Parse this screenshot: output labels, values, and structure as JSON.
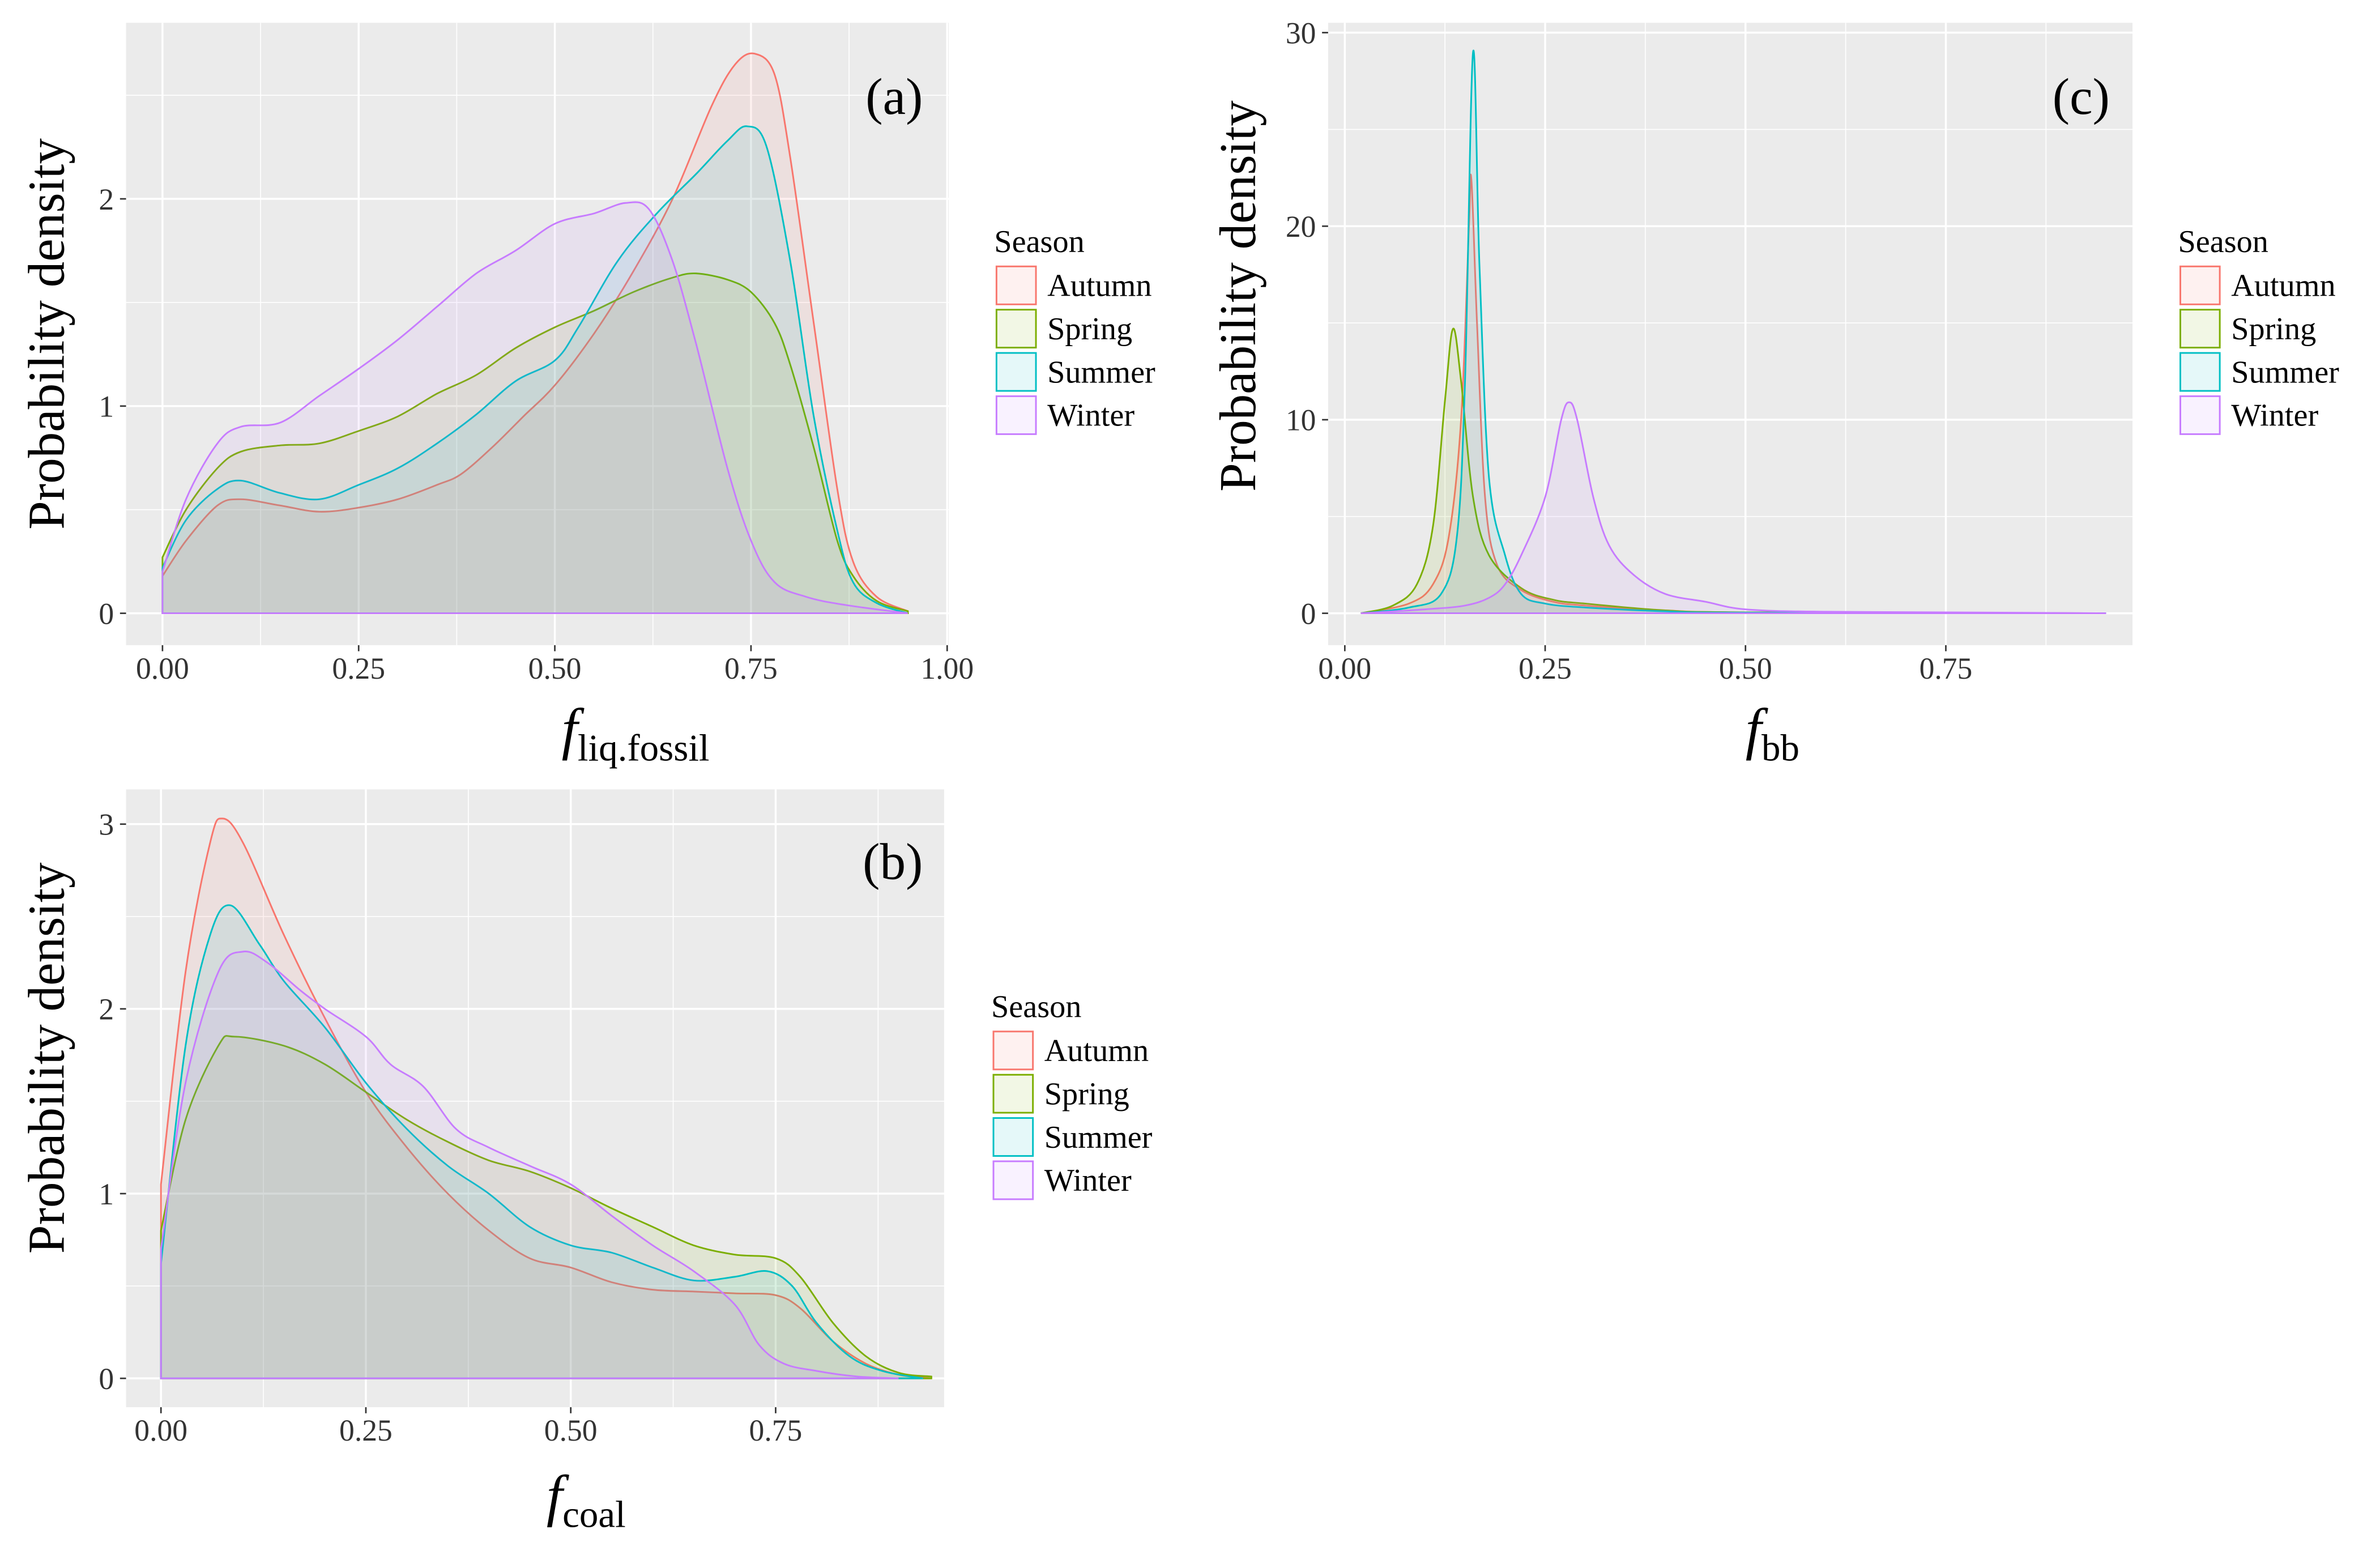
{
  "legend": {
    "title": "Season",
    "entries": [
      "Autumn",
      "Spring",
      "Summer",
      "Winter"
    ],
    "colors": [
      "#F8766D",
      "#7CAE00",
      "#00BFC4",
      "#C77CFF"
    ]
  },
  "chart_data": [
    {
      "type": "area",
      "panel_label": "(a)",
      "ylabel": "Probability density",
      "xlabel_main": "f",
      "xlabel_sub": "liq.fossil",
      "xticks": [
        "0.00",
        "0.25",
        "0.50",
        "0.75",
        "1.00"
      ],
      "yticks": [
        "0",
        "1",
        "2"
      ],
      "xlim": [
        -0.05,
        1.0
      ],
      "ylim": [
        -0.15,
        2.85
      ],
      "grid": true,
      "legend_position": "right",
      "series": [
        {
          "name": "Autumn",
          "x": [
            0,
            0.03,
            0.07,
            0.1,
            0.15,
            0.2,
            0.25,
            0.3,
            0.35,
            0.38,
            0.42,
            0.46,
            0.5,
            0.55,
            0.6,
            0.65,
            0.7,
            0.73,
            0.755,
            0.78,
            0.8,
            0.83,
            0.86,
            0.88,
            0.91,
            0.95
          ],
          "y": [
            0.18,
            0.35,
            0.52,
            0.55,
            0.52,
            0.49,
            0.51,
            0.55,
            0.62,
            0.67,
            0.8,
            0.95,
            1.1,
            1.35,
            1.65,
            2.0,
            2.45,
            2.65,
            2.7,
            2.6,
            2.2,
            1.4,
            0.6,
            0.25,
            0.08,
            0.01
          ]
        },
        {
          "name": "Spring",
          "x": [
            0,
            0.03,
            0.07,
            0.1,
            0.15,
            0.2,
            0.25,
            0.3,
            0.35,
            0.4,
            0.45,
            0.5,
            0.55,
            0.6,
            0.65,
            0.68,
            0.72,
            0.75,
            0.78,
            0.8,
            0.83,
            0.86,
            0.88,
            0.91,
            0.95
          ],
          "y": [
            0.27,
            0.5,
            0.7,
            0.78,
            0.81,
            0.82,
            0.88,
            0.95,
            1.06,
            1.15,
            1.28,
            1.38,
            1.46,
            1.55,
            1.62,
            1.64,
            1.61,
            1.55,
            1.4,
            1.2,
            0.8,
            0.35,
            0.18,
            0.06,
            0.01
          ]
        },
        {
          "name": "Summer",
          "x": [
            0,
            0.03,
            0.07,
            0.1,
            0.15,
            0.2,
            0.25,
            0.3,
            0.35,
            0.4,
            0.45,
            0.5,
            0.53,
            0.58,
            0.63,
            0.68,
            0.72,
            0.745,
            0.77,
            0.8,
            0.83,
            0.86,
            0.88,
            0.91,
            0.95
          ],
          "y": [
            0.22,
            0.45,
            0.6,
            0.64,
            0.58,
            0.55,
            0.62,
            0.7,
            0.82,
            0.96,
            1.12,
            1.22,
            1.38,
            1.7,
            1.93,
            2.12,
            2.28,
            2.35,
            2.25,
            1.7,
            0.95,
            0.4,
            0.15,
            0.05,
            0.0
          ]
        },
        {
          "name": "Winter",
          "x": [
            0,
            0.03,
            0.07,
            0.1,
            0.15,
            0.2,
            0.25,
            0.3,
            0.35,
            0.4,
            0.45,
            0.5,
            0.55,
            0.59,
            0.62,
            0.65,
            0.68,
            0.72,
            0.75,
            0.78,
            0.82,
            0.87,
            0.95
          ],
          "y": [
            0.2,
            0.55,
            0.82,
            0.9,
            0.92,
            1.05,
            1.18,
            1.32,
            1.48,
            1.64,
            1.75,
            1.88,
            1.93,
            1.98,
            1.95,
            1.7,
            1.3,
            0.7,
            0.35,
            0.15,
            0.08,
            0.04,
            0.0
          ]
        }
      ]
    },
    {
      "type": "area",
      "panel_label": "(b)",
      "ylabel": "Probability density",
      "xlabel_main": "f",
      "xlabel_sub": "coal",
      "xticks": [
        "0.00",
        "0.25",
        "0.50",
        "0.75"
      ],
      "yticks": [
        "0",
        "1",
        "2",
        "3"
      ],
      "xlim": [
        -0.045,
        0.95
      ],
      "ylim": [
        -0.15,
        3.2
      ],
      "grid": true,
      "legend_position": "right",
      "series": [
        {
          "name": "Autumn",
          "x": [
            0,
            0.03,
            0.06,
            0.075,
            0.1,
            0.15,
            0.2,
            0.25,
            0.3,
            0.35,
            0.4,
            0.45,
            0.5,
            0.55,
            0.6,
            0.65,
            0.7,
            0.75,
            0.78,
            0.82,
            0.86,
            0.9,
            0.94
          ],
          "y": [
            1.05,
            2.2,
            2.9,
            3.03,
            2.9,
            2.4,
            1.95,
            1.55,
            1.25,
            1.0,
            0.8,
            0.65,
            0.6,
            0.52,
            0.48,
            0.47,
            0.46,
            0.45,
            0.38,
            0.2,
            0.08,
            0.02,
            0.0
          ]
        },
        {
          "name": "Spring",
          "x": [
            0,
            0.03,
            0.07,
            0.09,
            0.15,
            0.2,
            0.25,
            0.3,
            0.35,
            0.4,
            0.45,
            0.5,
            0.55,
            0.6,
            0.65,
            0.7,
            0.75,
            0.78,
            0.82,
            0.86,
            0.9,
            0.94
          ],
          "y": [
            0.8,
            1.4,
            1.8,
            1.85,
            1.8,
            1.7,
            1.55,
            1.4,
            1.28,
            1.18,
            1.12,
            1.03,
            0.92,
            0.82,
            0.72,
            0.67,
            0.65,
            0.55,
            0.3,
            0.12,
            0.03,
            0.01
          ]
        },
        {
          "name": "Summer",
          "x": [
            0,
            0.03,
            0.06,
            0.085,
            0.12,
            0.15,
            0.2,
            0.25,
            0.3,
            0.35,
            0.4,
            0.45,
            0.5,
            0.55,
            0.6,
            0.65,
            0.7,
            0.74,
            0.77,
            0.8,
            0.84,
            0.88,
            0.93
          ],
          "y": [
            0.62,
            1.8,
            2.4,
            2.56,
            2.35,
            2.15,
            1.9,
            1.6,
            1.35,
            1.15,
            1.0,
            0.82,
            0.72,
            0.68,
            0.6,
            0.53,
            0.55,
            0.58,
            0.5,
            0.3,
            0.12,
            0.04,
            0.0
          ]
        },
        {
          "name": "Winter",
          "x": [
            0,
            0.03,
            0.07,
            0.1,
            0.13,
            0.17,
            0.2,
            0.25,
            0.28,
            0.32,
            0.36,
            0.4,
            0.45,
            0.5,
            0.55,
            0.6,
            0.65,
            0.7,
            0.73,
            0.76,
            0.8,
            0.85,
            0.9
          ],
          "y": [
            0.7,
            1.6,
            2.2,
            2.31,
            2.25,
            2.1,
            2.0,
            1.85,
            1.7,
            1.58,
            1.35,
            1.25,
            1.15,
            1.05,
            0.88,
            0.72,
            0.58,
            0.4,
            0.18,
            0.08,
            0.04,
            0.01,
            0.0
          ]
        }
      ]
    },
    {
      "type": "area",
      "panel_label": "(c)",
      "ylabel": "Probability density",
      "xlabel_main": "f",
      "xlabel_sub": "bb",
      "xticks": [
        "0.00",
        "0.25",
        "0.50",
        "0.75"
      ],
      "yticks": [
        "0",
        "10",
        "20",
        "30"
      ],
      "xlim": [
        -0.02,
        0.98
      ],
      "ylim": [
        -1.6,
        30.6
      ],
      "grid": true,
      "legend_position": "right",
      "series": [
        {
          "name": "Autumn",
          "x": [
            0.02,
            0.08,
            0.11,
            0.13,
            0.145,
            0.155,
            0.158,
            0.165,
            0.175,
            0.19,
            0.22,
            0.26,
            0.3,
            0.4,
            0.5,
            0.95
          ],
          "y": [
            0,
            0.5,
            1.5,
            4,
            10,
            20,
            22.4,
            15,
            6,
            2.5,
            1.2,
            0.6,
            0.4,
            0.15,
            0.05,
            0
          ]
        },
        {
          "name": "Spring",
          "x": [
            0.02,
            0.06,
            0.09,
            0.11,
            0.125,
            0.135,
            0.145,
            0.16,
            0.18,
            0.22,
            0.26,
            0.3,
            0.4,
            0.5,
            0.95
          ],
          "y": [
            0,
            0.4,
            1.5,
            4.5,
            11,
            14.7,
            12,
            6,
            3,
            1.3,
            0.7,
            0.5,
            0.15,
            0.05,
            0
          ]
        },
        {
          "name": "Summer",
          "x": [
            0.02,
            0.08,
            0.12,
            0.14,
            0.15,
            0.16,
            0.168,
            0.18,
            0.2,
            0.22,
            0.25,
            0.3,
            0.4,
            0.5,
            0.95
          ],
          "y": [
            0,
            0.3,
            1,
            4,
            12,
            29,
            18,
            7,
            3,
            1,
            0.5,
            0.3,
            0.1,
            0.03,
            0
          ]
        },
        {
          "name": "Winter",
          "x": [
            0.02,
            0.1,
            0.15,
            0.18,
            0.2,
            0.22,
            0.25,
            0.27,
            0.28,
            0.29,
            0.31,
            0.33,
            0.36,
            0.4,
            0.45,
            0.5,
            0.6,
            0.75,
            0.95
          ],
          "y": [
            0,
            0.2,
            0.4,
            0.8,
            1.5,
            3,
            6,
            10,
            10.9,
            10,
            6,
            3.5,
            2,
            1,
            0.6,
            0.2,
            0.08,
            0.05,
            0
          ]
        }
      ]
    }
  ]
}
